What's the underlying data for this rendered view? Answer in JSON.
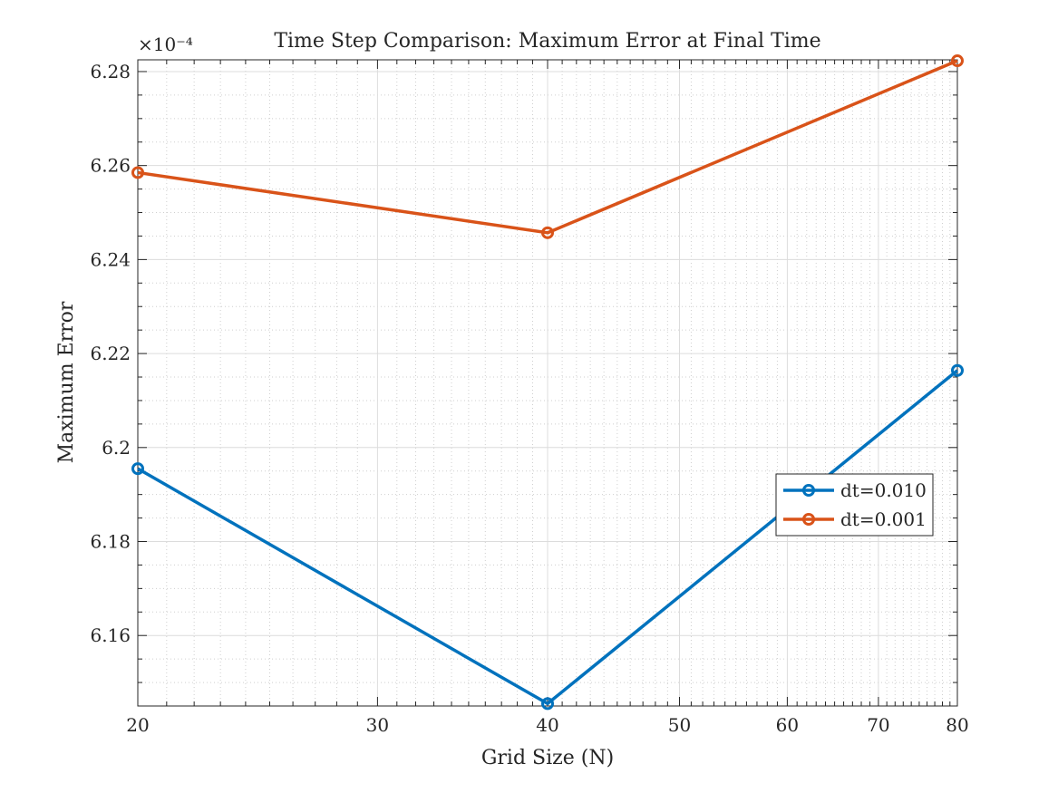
{
  "chart_data": {
    "type": "line",
    "title": "Time Step Comparison: Maximum Error at Final Time",
    "xlabel": "Grid Size (N)",
    "ylabel": "Maximum Error",
    "x_scale": "log",
    "y_scale": "linear",
    "xlim": [
      20,
      80
    ],
    "ylim": [
      6.145,
      6.2825
    ],
    "y_exponent_label": "×10⁻⁴",
    "x_ticks": [
      20,
      30,
      40,
      50,
      60,
      70,
      80
    ],
    "x_tick_labels": [
      "20",
      "30",
      "40",
      "50",
      "60",
      "70",
      "80"
    ],
    "y_ticks": [
      6.16,
      6.18,
      6.2,
      6.22,
      6.24,
      6.26,
      6.28
    ],
    "y_tick_labels": [
      "6.16",
      "6.18",
      "6.2",
      "6.22",
      "6.24",
      "6.26",
      "6.28"
    ],
    "grid": true,
    "minor_grid": true,
    "legend_position": "right",
    "x": [
      20,
      40,
      80
    ],
    "series": [
      {
        "name": "dt=0.010",
        "values": [
          6.1955,
          6.1455,
          6.2164
        ],
        "color": "#0072BD",
        "marker": "circle"
      },
      {
        "name": "dt=0.001",
        "values": [
          6.2585,
          6.2457,
          6.2823
        ],
        "color": "#D95319",
        "marker": "circle"
      }
    ]
  }
}
